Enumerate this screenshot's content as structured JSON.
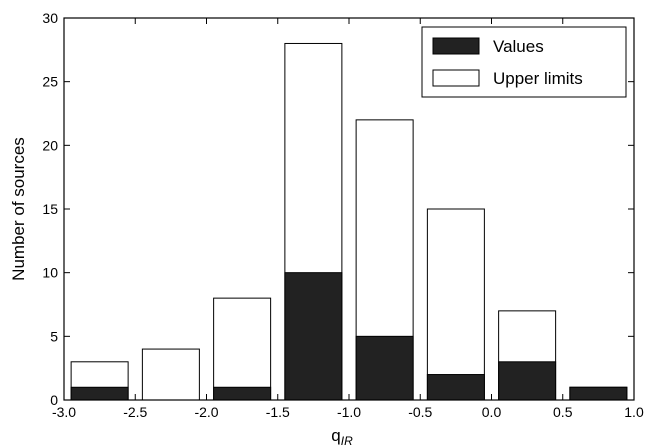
{
  "chart_data": {
    "type": "bar",
    "stacked": "overlay",
    "x_bins": [
      [
        -2.95,
        -2.55
      ],
      [
        -2.45,
        -2.05
      ],
      [
        -1.95,
        -1.55
      ],
      [
        -1.45,
        -1.05
      ],
      [
        -0.95,
        -0.55
      ],
      [
        -0.45,
        -0.05
      ],
      [
        0.05,
        0.45
      ],
      [
        0.55,
        0.95
      ]
    ],
    "series": [
      {
        "name": "Values",
        "color": "#222222",
        "values": [
          1,
          0,
          1,
          10,
          5,
          2,
          3,
          1
        ]
      },
      {
        "name": "Upper limits",
        "color": "#ffffff",
        "values": [
          3,
          4,
          8,
          28,
          22,
          15,
          7,
          1
        ]
      }
    ],
    "xlim": [
      -3.0,
      1.0
    ],
    "ylim": [
      0,
      30
    ],
    "xticks": [
      "-3.0",
      "-2.5",
      "-2.0",
      "-1.5",
      "-1.0",
      "-0.5",
      "0.0",
      "0.5",
      "1.0"
    ],
    "yticks": [
      "0",
      "5",
      "10",
      "15",
      "20",
      "25",
      "30"
    ],
    "xlabel_main": "q",
    "xlabel_sub": "IR",
    "ylabel": "Number of sources",
    "legend_position": "top-right",
    "grid": false
  }
}
